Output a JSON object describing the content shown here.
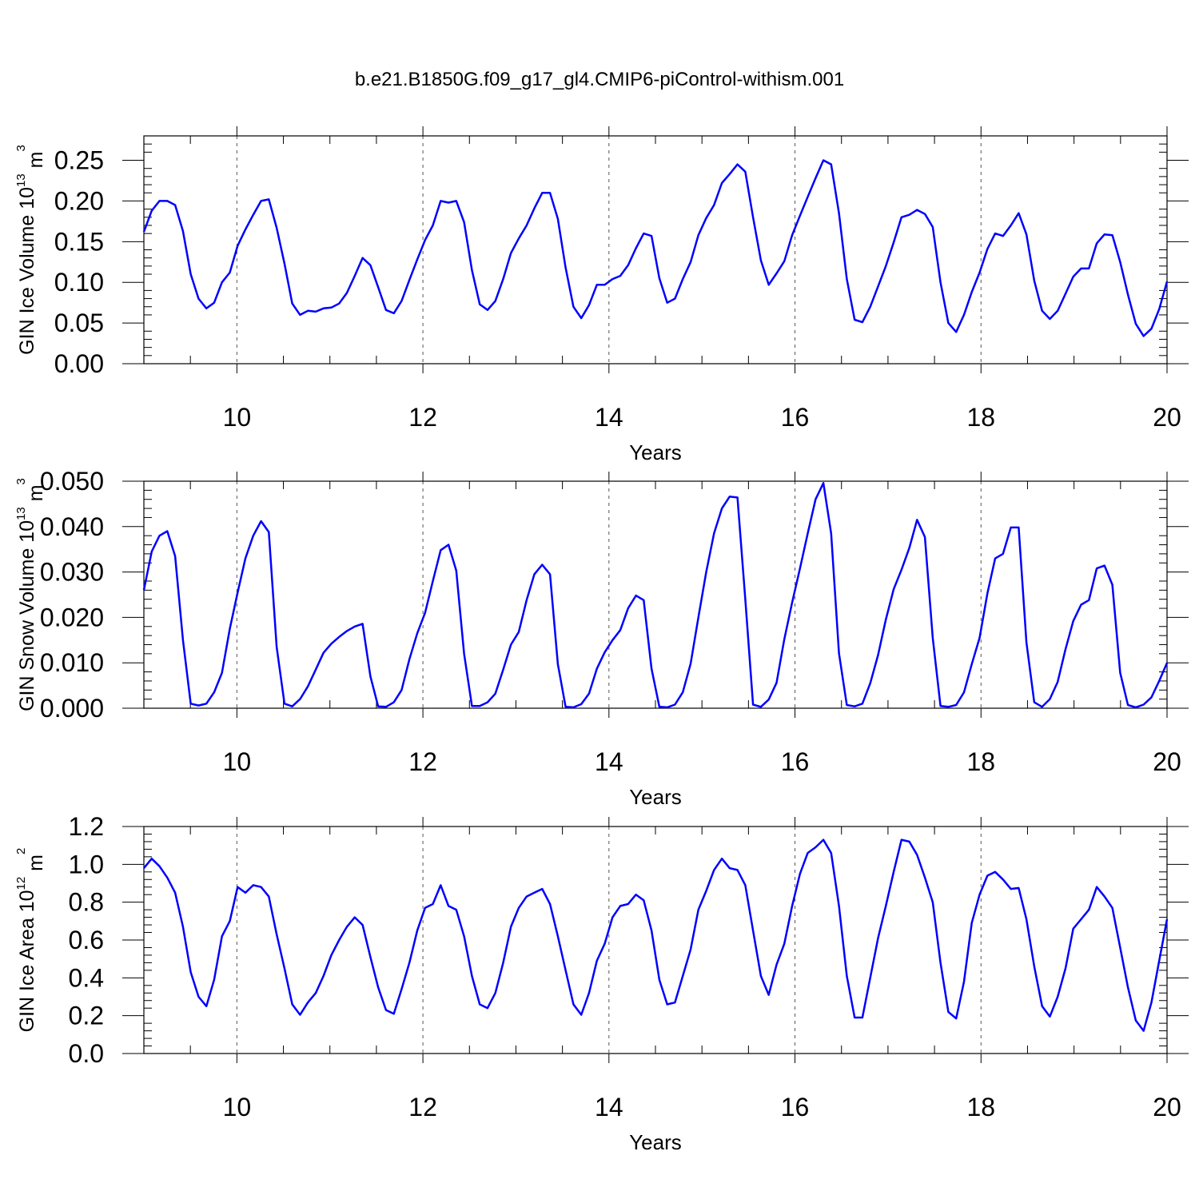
{
  "title": "b.e21.B1850G.f09_g17_gl4.CMIP6-piControl-withism.001",
  "chart_data": [
    {
      "type": "line",
      "ylabel": "GIN Ice Volume 10",
      "ylabel_exp": "13",
      "ylabel_unit": " m",
      "ylabel_unit_exp": "3",
      "xlabel": "Years",
      "xlim": [
        9,
        20
      ],
      "ylim": [
        0,
        0.28
      ],
      "x_ticks": [
        10,
        12,
        14,
        16,
        18,
        20
      ],
      "x_tick_labels": [
        "10",
        "12",
        "14",
        "16",
        "18",
        "20"
      ],
      "y_ticks": [
        0,
        0.05,
        0.1,
        0.15,
        0.2,
        0.25
      ],
      "y_tick_labels": [
        "0.00",
        "0.05",
        "0.10",
        "0.15",
        "0.20",
        "0.25"
      ],
      "y_minor_step": 0.01,
      "grid": "dashed vertical at major x ticks",
      "series": [
        {
          "color": "#0000ff",
          "values": [
            0.162,
            0.188,
            0.2,
            0.2,
            0.195,
            0.163,
            0.11,
            0.08,
            0.068,
            0.075,
            0.1,
            0.112,
            0.145,
            0.165,
            0.183,
            0.2,
            0.202,
            0.167,
            0.123,
            0.074,
            0.06,
            0.065,
            0.064,
            0.068,
            0.069,
            0.074,
            0.087,
            0.108,
            0.13,
            0.121,
            0.094,
            0.066,
            0.062,
            0.077,
            0.103,
            0.128,
            0.152,
            0.17,
            0.2,
            0.198,
            0.2,
            0.174,
            0.115,
            0.073,
            0.066,
            0.077,
            0.104,
            0.136,
            0.154,
            0.17,
            0.191,
            0.21,
            0.21,
            0.178,
            0.118,
            0.07,
            0.056,
            0.072,
            0.097,
            0.097,
            0.104,
            0.108,
            0.121,
            0.142,
            0.16,
            0.157,
            0.105,
            0.075,
            0.08,
            0.104,
            0.125,
            0.158,
            0.179,
            0.195,
            0.222,
            0.233,
            0.245,
            0.236,
            0.18,
            0.127,
            0.097,
            0.111,
            0.126,
            0.158,
            0.182,
            0.205,
            0.228,
            0.25,
            0.245,
            0.185,
            0.104,
            0.054,
            0.051,
            0.07,
            0.095,
            0.12,
            0.149,
            0.18,
            0.183,
            0.189,
            0.184,
            0.168,
            0.1,
            0.05,
            0.039,
            0.06,
            0.088,
            0.112,
            0.141,
            0.16,
            0.157,
            0.17,
            0.185,
            0.159,
            0.102,
            0.065,
            0.055,
            0.065,
            0.086,
            0.107,
            0.117,
            0.117,
            0.148,
            0.159,
            0.158,
            0.125,
            0.085,
            0.049,
            0.034,
            0.043,
            0.067,
            0.101
          ]
        }
      ]
    },
    {
      "type": "line",
      "ylabel": "GIN Snow Volume 10",
      "ylabel_exp": "13",
      "ylabel_unit": " m",
      "ylabel_unit_exp": "3",
      "xlabel": "Years",
      "xlim": [
        9,
        20
      ],
      "ylim": [
        0,
        0.05
      ],
      "x_ticks": [
        10,
        12,
        14,
        16,
        18,
        20
      ],
      "x_tick_labels": [
        "10",
        "12",
        "14",
        "16",
        "18",
        "20"
      ],
      "y_ticks": [
        0,
        0.01,
        0.02,
        0.03,
        0.04,
        0.05
      ],
      "y_tick_labels": [
        "0.000",
        "0.010",
        "0.020",
        "0.030",
        "0.040",
        "0.050"
      ],
      "y_minor_step": 0.002,
      "grid": "dashed vertical at major x ticks",
      "series": [
        {
          "color": "#0000ff",
          "values": [
            0.026,
            0.0345,
            0.038,
            0.039,
            0.0335,
            0.015,
            0.001,
            0.0006,
            0.001,
            0.0035,
            0.0078,
            0.0175,
            0.0255,
            0.033,
            0.038,
            0.0412,
            0.0388,
            0.0135,
            0.001,
            0.0004,
            0.002,
            0.0048,
            0.0085,
            0.0122,
            0.0142,
            0.0157,
            0.017,
            0.018,
            0.0186,
            0.007,
            0.0004,
            0.0003,
            0.0013,
            0.004,
            0.0108,
            0.0165,
            0.021,
            0.028,
            0.0348,
            0.036,
            0.0303,
            0.012,
            0.0005,
            0.0005,
            0.0013,
            0.0032,
            0.0085,
            0.014,
            0.0168,
            0.0238,
            0.0295,
            0.0316,
            0.0295,
            0.0097,
            0.0003,
            0.0002,
            0.0009,
            0.0032,
            0.0087,
            0.0123,
            0.015,
            0.0172,
            0.022,
            0.0248,
            0.0238,
            0.0087,
            0.0003,
            0.0002,
            0.0008,
            0.0035,
            0.0098,
            0.02,
            0.03,
            0.0385,
            0.044,
            0.0466,
            0.0464,
            0.024,
            0.0008,
            0.0003,
            0.0019,
            0.0056,
            0.0152,
            0.0233,
            0.0308,
            0.0385,
            0.046,
            0.0496,
            0.0385,
            0.0121,
            0.0007,
            0.0004,
            0.001,
            0.0055,
            0.0117,
            0.0195,
            0.0262,
            0.0305,
            0.0353,
            0.0415,
            0.0377,
            0.0155,
            0.0005,
            0.0003,
            0.0007,
            0.0035,
            0.0097,
            0.0155,
            0.0253,
            0.033,
            0.034,
            0.0398,
            0.0398,
            0.0145,
            0.0013,
            0.0003,
            0.002,
            0.0058,
            0.013,
            0.0192,
            0.0228,
            0.0238,
            0.0308,
            0.0314,
            0.0272,
            0.0078,
            0.0007,
            0.0002,
            0.0008,
            0.0024,
            0.006,
            0.01
          ]
        }
      ]
    },
    {
      "type": "line",
      "ylabel": "GIN Ice Area 10",
      "ylabel_exp": "12",
      "ylabel_unit": " m",
      "ylabel_unit_exp": "2",
      "xlabel": "Years",
      "xlim": [
        9,
        20
      ],
      "ylim": [
        0,
        1.2
      ],
      "x_ticks": [
        10,
        12,
        14,
        16,
        18,
        20
      ],
      "x_tick_labels": [
        "10",
        "12",
        "14",
        "16",
        "18",
        "20"
      ],
      "y_ticks": [
        0,
        0.2,
        0.4,
        0.6,
        0.8,
        1.0,
        1.2
      ],
      "y_tick_labels": [
        "0.0",
        "0.2",
        "0.4",
        "0.6",
        "0.8",
        "1.0",
        "1.2"
      ],
      "y_minor_step": 0.04,
      "grid": "dashed vertical at major x ticks",
      "series": [
        {
          "color": "#0000ff",
          "values": [
            0.98,
            1.03,
            0.99,
            0.93,
            0.85,
            0.67,
            0.43,
            0.3,
            0.25,
            0.39,
            0.62,
            0.7,
            0.88,
            0.85,
            0.89,
            0.88,
            0.83,
            0.63,
            0.45,
            0.26,
            0.205,
            0.27,
            0.32,
            0.41,
            0.52,
            0.6,
            0.67,
            0.72,
            0.68,
            0.51,
            0.35,
            0.23,
            0.21,
            0.34,
            0.48,
            0.65,
            0.77,
            0.79,
            0.89,
            0.78,
            0.76,
            0.62,
            0.41,
            0.26,
            0.24,
            0.32,
            0.48,
            0.67,
            0.77,
            0.83,
            0.85,
            0.87,
            0.79,
            0.62,
            0.44,
            0.26,
            0.205,
            0.32,
            0.49,
            0.58,
            0.72,
            0.78,
            0.79,
            0.84,
            0.81,
            0.65,
            0.39,
            0.26,
            0.27,
            0.41,
            0.55,
            0.76,
            0.86,
            0.97,
            1.03,
            0.98,
            0.97,
            0.89,
            0.65,
            0.41,
            0.31,
            0.47,
            0.58,
            0.78,
            0.95,
            1.06,
            1.09,
            1.13,
            1.06,
            0.78,
            0.41,
            0.19,
            0.19,
            0.4,
            0.61,
            0.78,
            0.96,
            1.13,
            1.12,
            1.05,
            0.93,
            0.8,
            0.48,
            0.22,
            0.185,
            0.38,
            0.69,
            0.84,
            0.94,
            0.96,
            0.92,
            0.87,
            0.875,
            0.71,
            0.46,
            0.25,
            0.195,
            0.3,
            0.45,
            0.66,
            0.71,
            0.76,
            0.88,
            0.83,
            0.77,
            0.56,
            0.35,
            0.175,
            0.12,
            0.27,
            0.49,
            0.71
          ]
        }
      ]
    }
  ]
}
